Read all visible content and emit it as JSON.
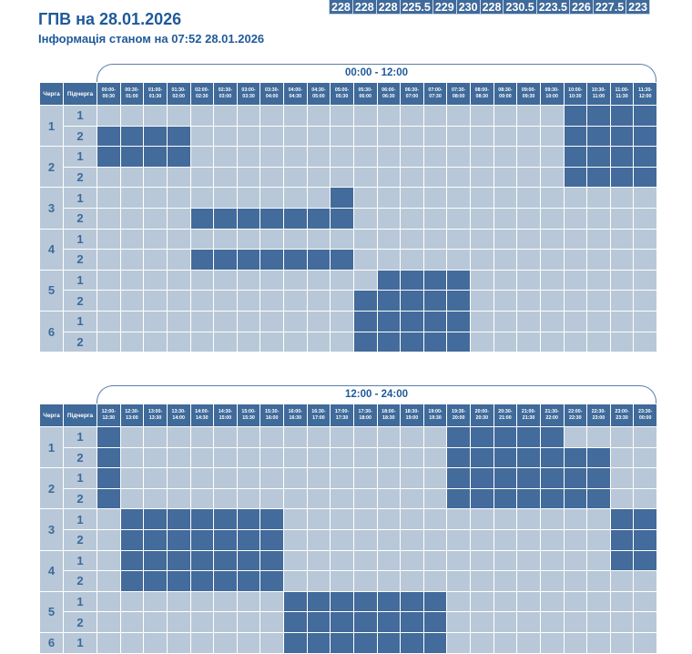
{
  "header": {
    "title": "ГПВ на 28.01.2026",
    "subtitle": "Інформація станом на 07:52 28.01.2026"
  },
  "strip_values": [
    "228",
    "228",
    "228",
    "225.5",
    "229",
    "230",
    "228",
    "230.5",
    "223.5",
    "226",
    "227.5",
    "223"
  ],
  "colors": {
    "header": "#3f6a9a",
    "outage": "#436b9b",
    "normal": "#b8c8d8",
    "text": "#1f5a99"
  },
  "col_queue": "Черга",
  "col_subqueue": "Підчерга",
  "tables": [
    {
      "range": "00:00 - 12:00",
      "slots": [
        "00:00-00:30",
        "00:30-01:00",
        "01:00-01:30",
        "01:30-02:00",
        "02:00-02:30",
        "02:30-03:00",
        "03:00-03:30",
        "03:30-04:00",
        "04:00-04:30",
        "04:30-05:00",
        "05:00-05:30",
        "05:30-06:00",
        "06:00-06:30",
        "06:30-07:00",
        "07:00-07:30",
        "07:30-08:00",
        "08:00-08:30",
        "08:30-09:00",
        "09:00-09:30",
        "09:30-10:00",
        "10:00-10:30",
        "10:30-11:00",
        "11:00-11:30",
        "11:30-12:00"
      ],
      "queues": [
        {
          "queue": "1",
          "subs": [
            {
              "sub": "1",
              "off": [
                20,
                21,
                22,
                23
              ]
            },
            {
              "sub": "2",
              "off": [
                0,
                1,
                2,
                3,
                20,
                21,
                22,
                23
              ]
            }
          ]
        },
        {
          "queue": "2",
          "subs": [
            {
              "sub": "1",
              "off": [
                0,
                1,
                2,
                3,
                20,
                21,
                22,
                23
              ]
            },
            {
              "sub": "2",
              "off": [
                20,
                21,
                22,
                23
              ]
            }
          ]
        },
        {
          "queue": "3",
          "subs": [
            {
              "sub": "1",
              "off": [
                10
              ]
            },
            {
              "sub": "2",
              "off": [
                4,
                5,
                6,
                7,
                8,
                9,
                10
              ]
            }
          ]
        },
        {
          "queue": "4",
          "subs": [
            {
              "sub": "1",
              "off": []
            },
            {
              "sub": "2",
              "off": [
                4,
                5,
                6,
                7,
                8,
                9,
                10
              ]
            }
          ]
        },
        {
          "queue": "5",
          "subs": [
            {
              "sub": "1",
              "off": [
                12,
                13,
                14,
                15
              ]
            },
            {
              "sub": "2",
              "off": [
                11,
                12,
                13,
                14,
                15
              ]
            }
          ]
        },
        {
          "queue": "6",
          "subs": [
            {
              "sub": "1",
              "off": [
                11,
                12,
                13,
                14,
                15
              ]
            },
            {
              "sub": "2",
              "off": [
                11,
                12,
                13,
                14,
                15
              ]
            }
          ]
        }
      ]
    },
    {
      "range": "12:00 - 24:00",
      "slots": [
        "12:00-12:30",
        "12:30-13:00",
        "13:00-13:30",
        "13:30-14:00",
        "14:00-14:30",
        "14:30-15:00",
        "15:00-15:30",
        "15:30-16:00",
        "16:00-16:30",
        "16:30-17:00",
        "17:00-17:30",
        "17:30-18:00",
        "18:00-18:30",
        "18:30-19:00",
        "19:00-19:30",
        "19:30-20:00",
        "20:00-20:30",
        "20:30-21:00",
        "21:00-21:30",
        "21:30-22:00",
        "22:00-22:30",
        "22:30-23:00",
        "23:00-23:30",
        "23:30-00:00"
      ],
      "queues": [
        {
          "queue": "1",
          "subs": [
            {
              "sub": "1",
              "off": [
                0,
                15,
                16,
                17,
                18,
                19
              ]
            },
            {
              "sub": "2",
              "off": [
                0,
                15,
                16,
                17,
                18,
                19,
                20,
                21
              ]
            }
          ]
        },
        {
          "queue": "2",
          "subs": [
            {
              "sub": "1",
              "off": [
                0,
                15,
                16,
                17,
                18,
                19,
                20,
                21
              ]
            },
            {
              "sub": "2",
              "off": [
                0,
                15,
                16,
                17,
                18,
                19,
                20,
                21
              ]
            }
          ]
        },
        {
          "queue": "3",
          "subs": [
            {
              "sub": "1",
              "off": [
                1,
                2,
                3,
                4,
                5,
                6,
                7,
                22,
                23
              ]
            },
            {
              "sub": "2",
              "off": [
                1,
                2,
                3,
                4,
                5,
                6,
                7,
                22,
                23
              ]
            }
          ]
        },
        {
          "queue": "4",
          "subs": [
            {
              "sub": "1",
              "off": [
                1,
                2,
                3,
                4,
                5,
                6,
                7,
                22,
                23
              ]
            },
            {
              "sub": "2",
              "off": [
                1,
                2,
                3,
                4,
                5,
                6,
                7
              ]
            }
          ]
        },
        {
          "queue": "5",
          "subs": [
            {
              "sub": "1",
              "off": [
                8,
                9,
                10,
                11,
                12,
                13,
                14
              ]
            },
            {
              "sub": "2",
              "off": [
                8,
                9,
                10,
                11,
                12,
                13,
                14
              ]
            }
          ]
        },
        {
          "queue": "6",
          "subs": [
            {
              "sub": "1",
              "off": [
                8,
                9,
                10,
                11,
                12,
                13,
                14
              ]
            }
          ]
        }
      ]
    }
  ]
}
